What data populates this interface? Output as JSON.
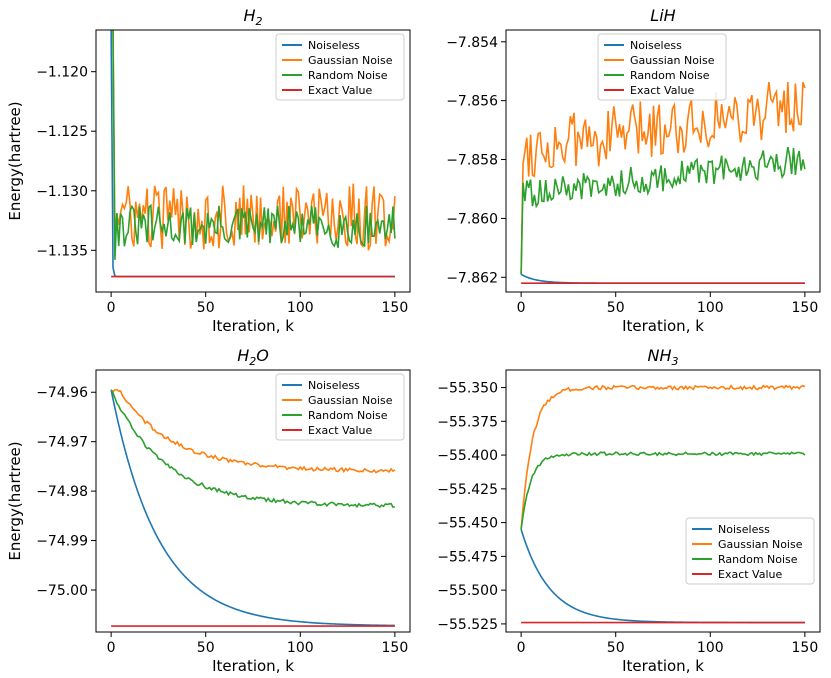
{
  "chart_data": [
    {
      "type": "line",
      "title_main": "H",
      "title_sub": "2",
      "xlabel": "Iteration, k",
      "ylabel": "Energy(hartree)",
      "xlim": [
        -8,
        158
      ],
      "ylim": [
        -1.1385,
        -1.1165
      ],
      "xticks": [
        0,
        50,
        100,
        150
      ],
      "xtick_labels": [
        "0",
        "50",
        "100",
        "150"
      ],
      "yticks": [
        -1.135,
        -1.13,
        -1.125,
        -1.12
      ],
      "ytick_labels": [
        "−1.135",
        "−1.130",
        "−1.125",
        "−1.120"
      ],
      "legend_loc": "upper right",
      "series": [
        {
          "name": "Noiseless",
          "color": "#1f77b4",
          "start": -1.1165,
          "end": -1.1372,
          "tau": 0.3,
          "kind": "decay"
        },
        {
          "name": "Gaussian Noise",
          "color": "#ff7f0e",
          "start": -1.1165,
          "drop_to": -1.1345,
          "mean": -1.1322,
          "amp": 0.0028,
          "kind": "noisy"
        },
        {
          "name": "Random Noise",
          "color": "#2ca02c",
          "start": -1.1165,
          "drop_to": -1.1358,
          "mean": -1.133,
          "amp": 0.0018,
          "kind": "noisy"
        },
        {
          "name": "Exact Value",
          "color": "#d62728",
          "value": -1.1372,
          "kind": "const"
        }
      ]
    },
    {
      "type": "line",
      "title_main": "LiH",
      "title_sub": "",
      "xlabel": "Iteration, k",
      "ylabel": "",
      "xlim": [
        -8,
        158
      ],
      "ylim": [
        -7.8625,
        -7.8536
      ],
      "xticks": [
        0,
        50,
        100,
        150
      ],
      "xtick_labels": [
        "0",
        "50",
        "100",
        "150"
      ],
      "yticks": [
        -7.862,
        -7.86,
        -7.858,
        -7.856,
        -7.854
      ],
      "ytick_labels": [
        "−7.862",
        "−7.860",
        "−7.858",
        "−7.856",
        "−7.854"
      ],
      "legend_loc": "upper left",
      "series": [
        {
          "name": "Noiseless",
          "color": "#1f77b4",
          "start": -7.8619,
          "end": -7.8622,
          "tau": 8,
          "kind": "decay"
        },
        {
          "name": "Gaussian Noise",
          "color": "#ff7f0e",
          "start": -7.8619,
          "mean_start": -7.8577,
          "mean_end": -7.8561,
          "amp": 0.001,
          "kind": "noisy_trend"
        },
        {
          "name": "Random Noise",
          "color": "#2ca02c",
          "start": -7.8619,
          "mean_start": -7.8592,
          "mean_end": -7.858,
          "amp": 0.0005,
          "kind": "noisy_trend"
        },
        {
          "name": "Exact Value",
          "color": "#d62728",
          "value": -7.8622,
          "kind": "const"
        }
      ]
    },
    {
      "type": "line",
      "title_main": "H",
      "title_sub": "2",
      "title_tail": "O",
      "xlabel": "Iteration, k",
      "ylabel": "Energy(hartree)",
      "xlim": [
        -8,
        158
      ],
      "ylim": [
        -75.0085,
        -74.9555
      ],
      "xticks": [
        0,
        50,
        100,
        150
      ],
      "xtick_labels": [
        "0",
        "50",
        "100",
        "150"
      ],
      "yticks": [
        -75.0,
        -74.99,
        -74.98,
        -74.97,
        -74.96
      ],
      "ytick_labels": [
        "−75.00",
        "−74.99",
        "−74.98",
        "−74.97",
        "−74.96"
      ],
      "legend_loc": "upper right",
      "series": [
        {
          "name": "Noiseless",
          "color": "#1f77b4",
          "start": -74.9595,
          "end": -75.0073,
          "tau": 25,
          "kind": "decay"
        },
        {
          "name": "Gaussian Noise",
          "color": "#ff7f0e",
          "start": -74.9595,
          "peak": -74.957,
          "end": -74.976,
          "tau": 30,
          "amp": 0.0004,
          "kind": "hump"
        },
        {
          "name": "Random Noise",
          "color": "#2ca02c",
          "start": -74.9595,
          "peak": -74.9595,
          "end": -74.983,
          "tau": 28,
          "amp": 0.0004,
          "kind": "hump"
        },
        {
          "name": "Exact Value",
          "color": "#d62728",
          "value": -75.0073,
          "kind": "const"
        }
      ]
    },
    {
      "type": "line",
      "title_main": "NH",
      "title_sub": "3",
      "xlabel": "Iteration, k",
      "ylabel": "",
      "xlim": [
        -8,
        158
      ],
      "ylim": [
        -55.531,
        -55.337
      ],
      "xticks": [
        0,
        50,
        100,
        150
      ],
      "xtick_labels": [
        "0",
        "50",
        "100",
        "150"
      ],
      "yticks": [
        -55.525,
        -55.5,
        -55.475,
        -55.45,
        -55.425,
        -55.4,
        -55.375,
        -55.35
      ],
      "ytick_labels": [
        "−55.525",
        "−55.500",
        "−55.475",
        "−55.450",
        "−55.425",
        "−55.400",
        "−55.375",
        "−55.350"
      ],
      "legend_loc": "center right",
      "series": [
        {
          "name": "Noiseless",
          "color": "#1f77b4",
          "start": -55.455,
          "end": -55.524,
          "tau": 15,
          "kind": "decay"
        },
        {
          "name": "Gaussian Noise",
          "color": "#ff7f0e",
          "start": -55.455,
          "end": -55.35,
          "tau": 6,
          "amp": 0.0015,
          "kind": "rise"
        },
        {
          "name": "Random Noise",
          "color": "#2ca02c",
          "start": -55.455,
          "end": -55.399,
          "tau": 5,
          "amp": 0.0012,
          "kind": "rise"
        },
        {
          "name": "Exact Value",
          "color": "#d62728",
          "value": -55.524,
          "kind": "const"
        }
      ]
    }
  ]
}
